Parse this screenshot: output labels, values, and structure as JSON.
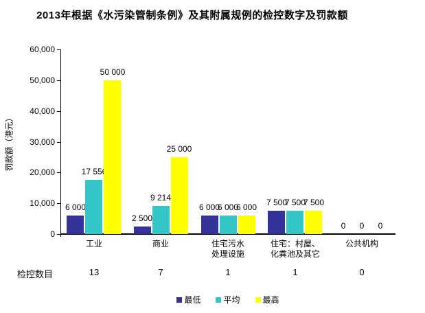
{
  "chart_data": {
    "type": "bar",
    "title": "2013年根据《水污染管制条例》及其附属规例的检控数字及罚款额",
    "ylabel": "罚款额（港元）",
    "xlabel": "",
    "ylim": [
      0,
      60000
    ],
    "ytick_step": 10000,
    "ytick_labels": [
      "0",
      "10,000",
      "20,000",
      "30,000",
      "40,000",
      "50,000",
      "60,000"
    ],
    "grid": false,
    "background": "#FFFFFF",
    "categories": [
      [
        "工业"
      ],
      [
        "商业"
      ],
      [
        "住宅污水",
        "处理设施"
      ],
      [
        "住宅：村屋、",
        "化粪池及其它"
      ],
      [
        "公共机构"
      ]
    ],
    "series": [
      {
        "name": "最低",
        "color": "#333399",
        "values": [
          6000,
          2500,
          6000,
          7500,
          0
        ],
        "labels": [
          "6 000",
          "2 500",
          "6 000",
          "7 500",
          "0"
        ]
      },
      {
        "name": "平均",
        "color": "#35C7C7",
        "values": [
          17556,
          9214,
          6000,
          7500,
          0
        ],
        "labels": [
          "17 556",
          "9 214",
          "6 000",
          "7 500",
          "0"
        ]
      },
      {
        "name": "最高",
        "color": "#FFFF00",
        "values": [
          50000,
          25000,
          6000,
          7500,
          0
        ],
        "labels": [
          "50 000",
          "25 000",
          "6 000",
          "7 500",
          "0"
        ]
      }
    ],
    "prosecutions": {
      "label": "检控数目",
      "values": [
        "13",
        "7",
        "1",
        "1",
        "0"
      ]
    },
    "legend": [
      {
        "label": "最低",
        "color": "#333399"
      },
      {
        "label": "平均",
        "color": "#35C7C7"
      },
      {
        "label": "最高",
        "color": "#FFFF00"
      }
    ],
    "legend_position": "bottom"
  }
}
